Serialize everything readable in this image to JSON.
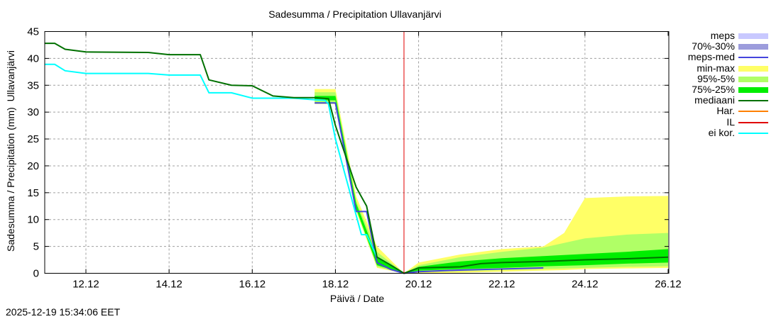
{
  "chart_data": {
    "type": "area",
    "title": "Sadesumma / Precipitation  Ullavanjärvi",
    "xlabel": "Päivä / Date",
    "ylabel": "Sadesumma / Precipitation (mm)  Ullavanjärvi",
    "ylim": [
      0,
      45
    ],
    "yticks": [
      0,
      5,
      10,
      15,
      20,
      25,
      30,
      35,
      40,
      45
    ],
    "xticks": [
      "12.12",
      "14.12",
      "16.12",
      "18.12",
      "20.12",
      "22.12",
      "24.12",
      "26.12"
    ],
    "grid": true,
    "legend_position": "right-outside",
    "forecast_start": "19.12 ~15:34 (IL line)",
    "series": [
      {
        "name": "mediaani",
        "color": "#007000",
        "x": [
          "11.12 00:00",
          "11.12 06:00",
          "11.12 12:00",
          "12.12 00:00",
          "13.12 12:00",
          "14.12 00:00",
          "14.12 18:00",
          "14.12 23:00",
          "15.12 12:00",
          "16.12 00:00",
          "16.12 12:00",
          "17.12 00:00",
          "17.12 12:00",
          "17.12 20:00",
          "18.12 00:00",
          "18.12 12:00",
          "18.12 18:00",
          "19.12 00:00",
          "19.12 08:00",
          "19.12 15:34",
          "20.12 00:00",
          "21.12 00:00",
          "21.12 12:00",
          "22.12 00:00",
          "23.12 00:00",
          "24.12 00:00",
          "25.12 00:00",
          "26.12 00:00"
        ],
        "values": [
          42.8,
          42.8,
          41.7,
          41.2,
          41.1,
          40.7,
          40.7,
          36.0,
          35.0,
          34.9,
          33.0,
          32.7,
          32.7,
          32.5,
          27.5,
          16.0,
          12.5,
          3.0,
          1.5,
          0.0,
          1.0,
          1.2,
          1.8,
          2.0,
          2.2,
          2.5,
          2.7,
          3.0
        ]
      },
      {
        "name": "ei kor.",
        "color": "#00ffff",
        "x": [
          "11.12 00:00",
          "11.12 06:00",
          "11.12 12:00",
          "12.12 00:00",
          "13.12 12:00",
          "14.12 00:00",
          "14.12 18:00",
          "14.12 23:00",
          "15.12 12:00",
          "16.12 00:00",
          "17.12 00:00",
          "17.12 12:00",
          "17.12 18:00",
          "17.12 20:00",
          "18.12 00:00",
          "18.12 15:00",
          "18.12 18:00",
          "19.12 00:00",
          "19.12 08:00",
          "19.12 15:34"
        ],
        "values": [
          38.9,
          38.9,
          37.7,
          37.2,
          37.2,
          36.9,
          36.9,
          33.6,
          33.6,
          32.6,
          32.6,
          32.3,
          32.2,
          31.5,
          25.0,
          7.2,
          7.2,
          3.0,
          1.5,
          0.0
        ]
      },
      {
        "name": "meps-med",
        "color": "#4444dd",
        "x": [
          "17.12 12:00",
          "18.12 00:00",
          "18.12 12:00",
          "18.12 18:00",
          "19.12 00:00",
          "19.12 08:00",
          "19.12 15:34",
          "20.12 00:00",
          "21.12 00:00",
          "22.12 00:00",
          "23.12 00:00"
        ],
        "values": [
          31.7,
          31.7,
          11.5,
          11.5,
          2.0,
          0.7,
          0.0,
          0.3,
          0.6,
          0.8,
          1.0
        ]
      },
      {
        "name": "min-max",
        "color": "#ffff66",
        "type": "band",
        "x": [
          "17.12 12:00",
          "18.12 00:00",
          "18.12 12:00",
          "19.12 00:00",
          "19.12 15:34",
          "20.12 00:00",
          "21.12 00:00",
          "22.12 00:00",
          "23.12 00:00",
          "23.12 12:00",
          "24.12 00:00",
          "25.12 00:00",
          "26.12 00:00"
        ],
        "low": [
          31.5,
          31.5,
          11.5,
          1.0,
          0.0,
          0.0,
          0.1,
          0.3,
          0.5,
          0.6,
          0.8,
          0.9,
          1.0
        ],
        "high": [
          34.3,
          34.3,
          14.3,
          5.0,
          0.0,
          2.0,
          3.5,
          4.5,
          5.0,
          7.5,
          14.0,
          14.3,
          14.4
        ]
      },
      {
        "name": "95%-5%",
        "color": "#b0ff66",
        "type": "band",
        "x": [
          "17.12 12:00",
          "18.12 00:00",
          "18.12 12:00",
          "19.12 00:00",
          "19.12 15:34",
          "20.12 00:00",
          "21.12 00:00",
          "22.12 00:00",
          "23.12 00:00",
          "24.12 00:00",
          "25.12 00:00",
          "26.12 00:00"
        ],
        "low": [
          31.8,
          31.8,
          11.8,
          1.2,
          0.0,
          0.2,
          0.4,
          0.6,
          0.8,
          1.0,
          1.2,
          1.3
        ],
        "high": [
          33.7,
          33.7,
          13.5,
          4.0,
          0.0,
          1.5,
          3.0,
          4.0,
          4.8,
          6.5,
          7.2,
          7.5
        ]
      },
      {
        "name": "75%-25%",
        "color": "#00ee00",
        "type": "band",
        "x": [
          "17.12 12:00",
          "18.12 00:00",
          "18.12 12:00",
          "19.12 00:00",
          "19.12 15:34",
          "20.12 00:00",
          "21.12 00:00",
          "22.12 00:00",
          "23.12 00:00",
          "24.12 00:00",
          "25.12 00:00",
          "26.12 00:00"
        ],
        "low": [
          32.2,
          32.2,
          12.0,
          1.5,
          0.0,
          0.5,
          0.8,
          1.0,
          1.3,
          1.5,
          1.8,
          2.0
        ],
        "high": [
          33.0,
          33.0,
          13.0,
          3.0,
          0.0,
          1.2,
          2.2,
          2.8,
          3.2,
          3.6,
          4.0,
          4.5
        ]
      },
      {
        "name": "70%-30%",
        "color": "#9999dd",
        "type": "band",
        "values": []
      },
      {
        "name": "meps",
        "color": "#c8c8ff",
        "type": "band",
        "values": []
      },
      {
        "name": "Har.",
        "color": "#ff8000",
        "values": []
      },
      {
        "name": "IL",
        "color": "#e00000",
        "type": "vline",
        "x": "19.12 15:34"
      }
    ]
  },
  "legend": {
    "items": [
      {
        "label": "meps",
        "color": "#c8c8ff",
        "kind": "band"
      },
      {
        "label": "70%-30%",
        "color": "#9c9cdc",
        "kind": "band"
      },
      {
        "label": "meps-med",
        "color": "#4444dd",
        "kind": "line"
      },
      {
        "label": "min-max",
        "color": "#ffff66",
        "kind": "band"
      },
      {
        "label": "95%-5%",
        "color": "#b0ff66",
        "kind": "band"
      },
      {
        "label": "75%-25%",
        "color": "#00ee00",
        "kind": "band"
      },
      {
        "label": "mediaani",
        "color": "#007000",
        "kind": "line"
      },
      {
        "label": "Har.",
        "color": "#ff8000",
        "kind": "line"
      },
      {
        "label": "IL",
        "color": "#e00000",
        "kind": "line"
      },
      {
        "label": "ei kor.",
        "color": "#00ffff",
        "kind": "line"
      }
    ]
  },
  "footer": {
    "timestamp": "2025-12-19 15:34:06 EET"
  }
}
